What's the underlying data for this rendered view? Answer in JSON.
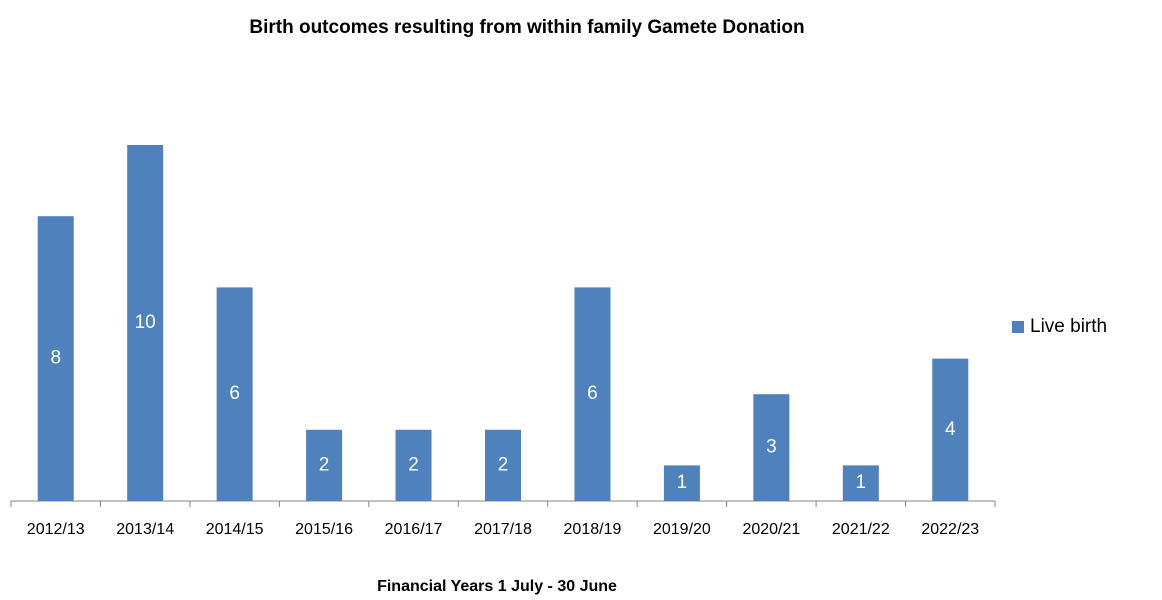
{
  "chart_data": {
    "type": "bar",
    "title": "Birth outcomes resulting from within family  Gamete Donation",
    "x_label": "Financial Years 1 July - 30 June",
    "categories": [
      "2012/13",
      "2013/14",
      "2014/15",
      "2015/16",
      "2016/17",
      "2017/18",
      "2018/19",
      "2019/20",
      "2020/21",
      "2021/22",
      "2022/23"
    ],
    "series": [
      {
        "name": "Live birth",
        "color": "#4f81bd",
        "values": [
          8,
          10,
          6,
          2,
          2,
          2,
          6,
          1,
          3,
          1,
          4
        ]
      }
    ],
    "legend": "right"
  }
}
